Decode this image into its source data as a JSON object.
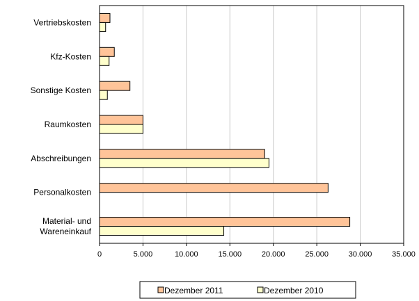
{
  "chart_data": {
    "type": "bar",
    "orientation": "horizontal",
    "title": "",
    "xlabel": "",
    "ylabel": "",
    "categories": [
      [
        "Vertriebskosten"
      ],
      [
        "Kfz-Kosten"
      ],
      [
        "Sonstige Kosten"
      ],
      [
        "Raumkosten"
      ],
      [
        "Abschreibungen"
      ],
      [
        "Personalkosten"
      ],
      [
        "Material- und",
        "Wareneinkauf"
      ]
    ],
    "series": [
      {
        "name": "Dezember 2011",
        "values": [
          1200,
          1700,
          3500,
          5000,
          19000,
          26300,
          28800
        ],
        "color": "#FFC499"
      },
      {
        "name": "Dezember 2010",
        "values": [
          700,
          1100,
          900,
          5000,
          19500,
          0,
          14300
        ],
        "color": "#FFFFCC"
      }
    ],
    "xlim": [
      0,
      35000
    ],
    "xticks": [
      0,
      5000,
      10000,
      15000,
      20000,
      25000,
      30000,
      35000
    ],
    "xtick_labels": [
      "0",
      "5.000",
      "10.000",
      "15.000",
      "20.000",
      "25.000",
      "30.000",
      "35.000"
    ],
    "grid": "vertical",
    "legend_position": "bottom"
  }
}
